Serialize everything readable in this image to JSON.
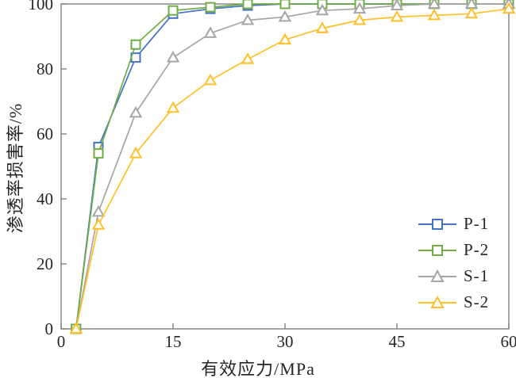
{
  "figure": {
    "background": "#ffffff",
    "axis_color": "#808080",
    "text_color": "#262626"
  },
  "chart_data": {
    "type": "line",
    "title": "",
    "xlabel": "有效应力/MPa",
    "ylabel": "渗透率损害率/%",
    "xlim": [
      0,
      60
    ],
    "ylim": [
      0,
      100
    ],
    "x_ticks": [
      0,
      15,
      30,
      45,
      60
    ],
    "y_ticks": [
      0,
      20,
      40,
      60,
      80,
      100
    ],
    "grid": false,
    "legend_position": "inside lower right",
    "x": [
      2,
      5,
      10,
      15,
      20,
      25,
      30,
      35,
      40,
      45,
      50,
      55,
      60
    ],
    "series": [
      {
        "name": "P-1",
        "marker": "square",
        "color": "#4472C4",
        "values": [
          0,
          56,
          83.5,
          97,
          98.5,
          99.5,
          100,
          100,
          100,
          100,
          100,
          100,
          100
        ]
      },
      {
        "name": "P-2",
        "marker": "square",
        "color": "#70AD47",
        "values": [
          0,
          54,
          87.5,
          98,
          99,
          100,
          100,
          100,
          100,
          100,
          100,
          100,
          100
        ]
      },
      {
        "name": "S-1",
        "marker": "triangle",
        "color": "#A6A6A6",
        "values": [
          0,
          36,
          66.5,
          83.5,
          91,
          95,
          96,
          98,
          98.5,
          99.5,
          100,
          100,
          100
        ]
      },
      {
        "name": "S-2",
        "marker": "triangle",
        "color": "#FFC029",
        "values": [
          0,
          32,
          54,
          68,
          76.5,
          83,
          89,
          92.5,
          95,
          96,
          96.5,
          97,
          98.5
        ]
      }
    ]
  }
}
